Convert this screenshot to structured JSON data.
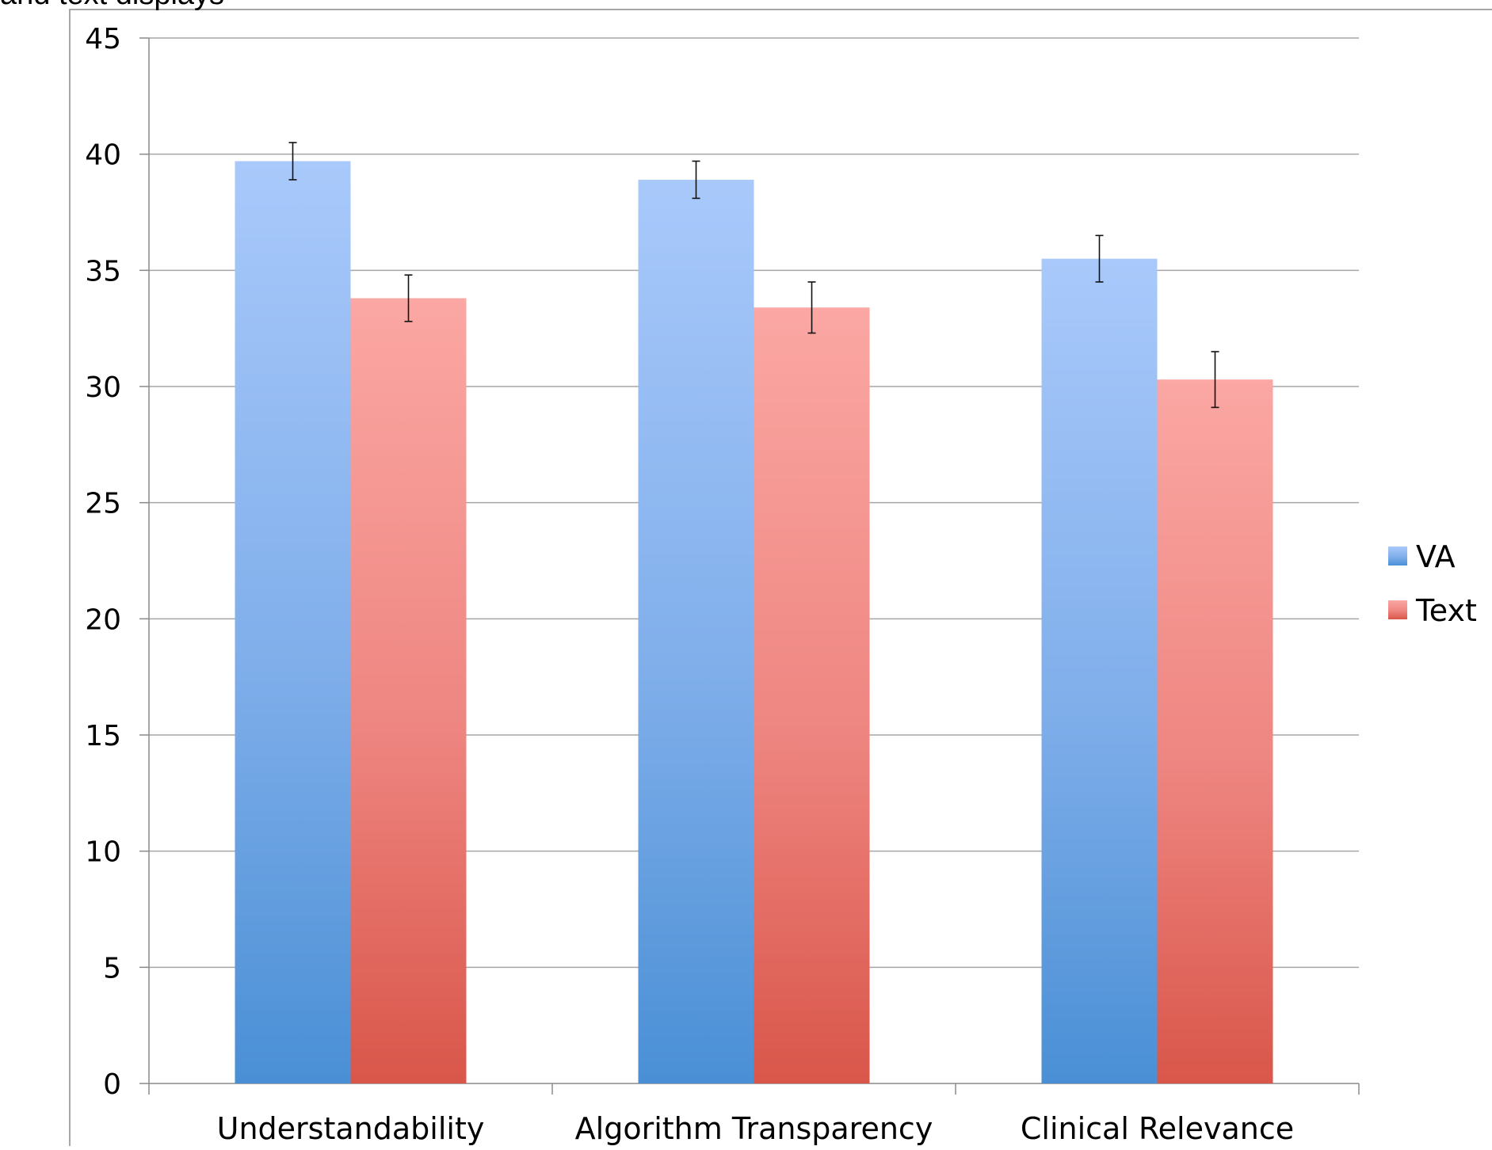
{
  "caption_fragment": "and text displays",
  "chart_data": {
    "type": "bar",
    "title": "",
    "xlabel": "",
    "ylabel": "",
    "categories": [
      "Understandability",
      "Algorithm Transparency",
      "Clinical Relevance"
    ],
    "series": [
      {
        "name": "VA",
        "values": [
          39.7,
          38.9,
          35.5
        ],
        "error": [
          0.8,
          0.8,
          1.0
        ],
        "color": "#5b9be6"
      },
      {
        "name": "Text",
        "values": [
          33.8,
          33.4,
          30.3
        ],
        "error": [
          1.0,
          1.1,
          1.2
        ],
        "color": "#e46a62"
      }
    ],
    "ylim": [
      0,
      45
    ],
    "yticks": [
      0,
      5,
      10,
      15,
      20,
      25,
      30,
      35,
      40,
      45
    ],
    "grid": true,
    "legend": "right"
  }
}
